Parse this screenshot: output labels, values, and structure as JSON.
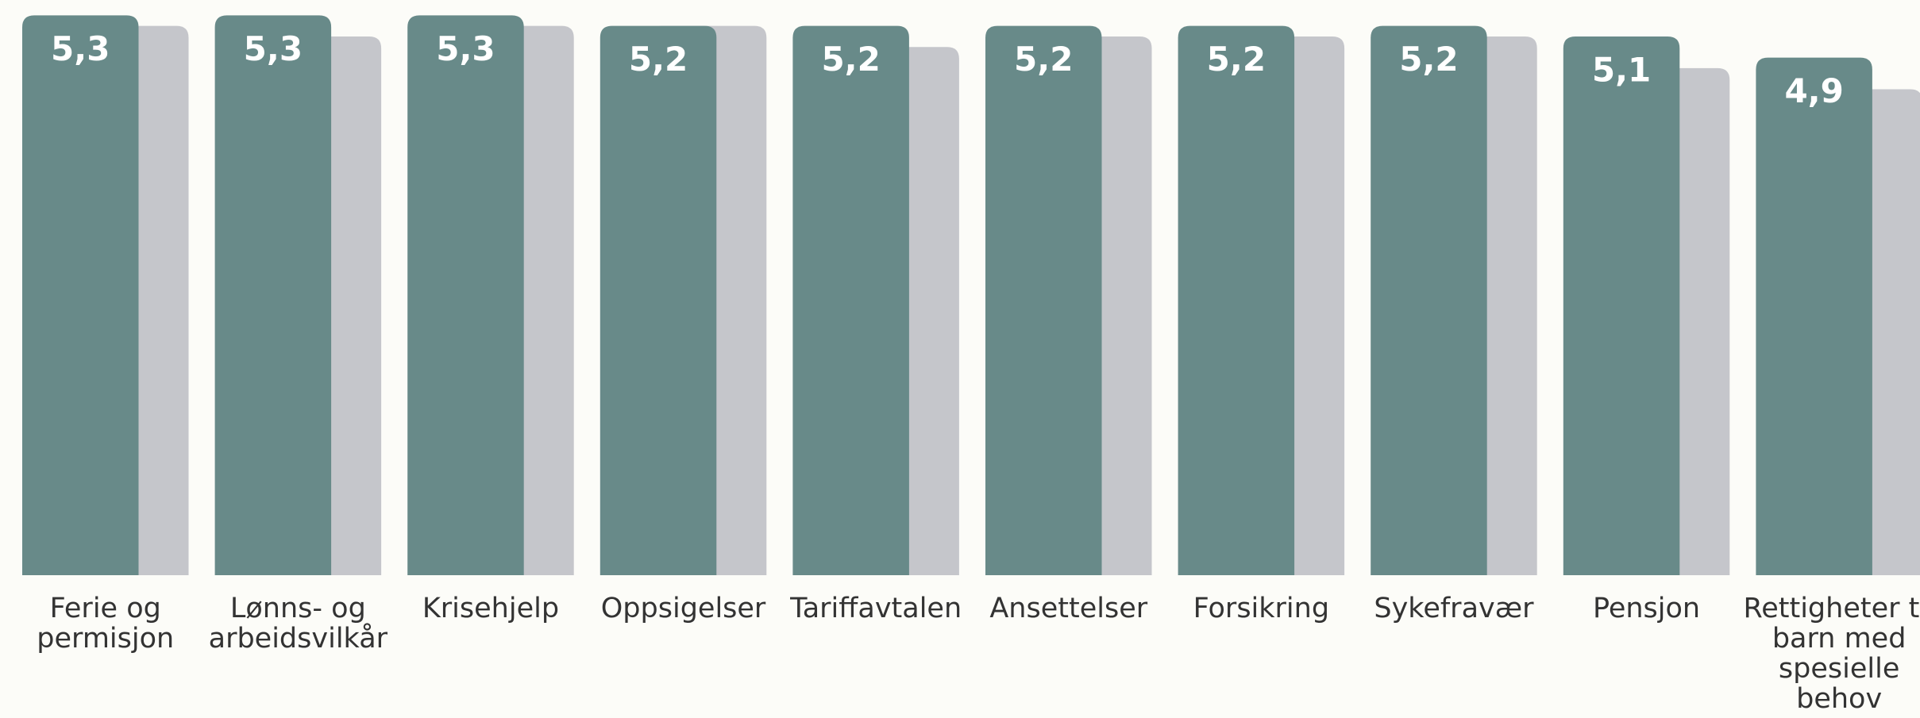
{
  "chart_data": {
    "type": "bar",
    "categories": [
      "Ferie og permisjon",
      "Lønns- og arbeidsvilkår",
      "Krisehjelp",
      "Oppsigelser",
      "Tariffavtalen",
      "Ansettelser",
      "Forsikring",
      "Sykefravær",
      "Pensjon",
      "Rettigheter til barn med spesielle behov"
    ],
    "series": [
      {
        "color": "#688a89",
        "values": [
          5.3,
          5.3,
          5.3,
          5.2,
          5.2,
          5.2,
          5.2,
          5.2,
          5.1,
          4.9
        ],
        "value_labels": [
          "5,3",
          "5,3",
          "5,3",
          "5,2",
          "5,2",
          "5,2",
          "5,2",
          "5,2",
          "5,1",
          "4,9"
        ]
      },
      {
        "color": "#c5c6cb",
        "values": [
          5.2,
          5.1,
          5.2,
          5.2,
          5.0,
          5.1,
          5.1,
          5.1,
          4.8,
          4.6
        ]
      }
    ],
    "ylim": [
      0,
      5.4
    ]
  }
}
